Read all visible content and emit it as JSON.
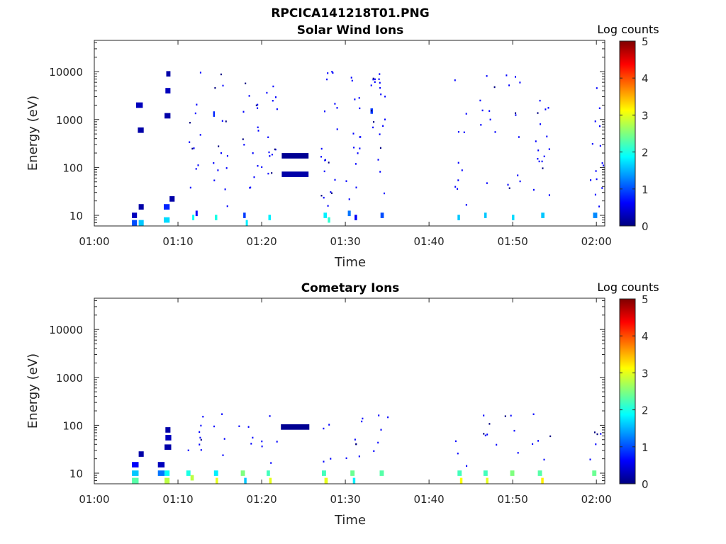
{
  "figure": {
    "title": "RPCICA141218T01.PNG"
  },
  "colormap": {
    "name": "jet",
    "stops": [
      "#00007f",
      "#0000ff",
      "#007fff",
      "#00ffff",
      "#7fff7f",
      "#ffff00",
      "#ff7f00",
      "#ff0000",
      "#7f0000"
    ]
  },
  "chart_data": [
    {
      "type": "heatmap",
      "title": "Solar Wind Ions",
      "xlabel": "Time",
      "ylabel": "Energy (eV)",
      "y_scale": "log",
      "xlim": [
        "01:00",
        "02:01"
      ],
      "ylim": [
        6,
        45000
      ],
      "x_ticks": [
        "01:00",
        "01:10",
        "01:20",
        "01:30",
        "01:40",
        "01:50",
        "02:00"
      ],
      "y_ticks": [
        "10",
        "100",
        "1000",
        "10000"
      ],
      "colorbar": {
        "label": "Log counts",
        "min": 0,
        "max": 5,
        "ticks": [
          "0",
          "1",
          "2",
          "3",
          "4",
          "5"
        ]
      },
      "values": [
        {
          "t": 4.5,
          "dt": 0.6,
          "e": 10,
          "c": 0.3
        },
        {
          "t": 4.5,
          "dt": 0.6,
          "e": 7,
          "c": 1.0
        },
        {
          "t": 5.3,
          "dt": 0.6,
          "e": 15,
          "c": 0.2
        },
        {
          "t": 5.3,
          "dt": 0.6,
          "e": 7,
          "c": 1.6
        },
        {
          "t": 8.3,
          "dt": 0.7,
          "e": 15,
          "c": 0.8
        },
        {
          "t": 8.3,
          "dt": 0.7,
          "e": 8,
          "c": 1.7
        },
        {
          "t": 9.0,
          "dt": 0.6,
          "e": 22,
          "c": 0.2
        },
        {
          "t": 11.7,
          "dt": 0.25,
          "e": 9,
          "c": 1.9
        },
        {
          "t": 12.1,
          "dt": 0.25,
          "e": 11,
          "c": 0.6
        },
        {
          "t": 14.4,
          "dt": 0.3,
          "e": 9,
          "c": 2.0
        },
        {
          "t": 17.8,
          "dt": 0.3,
          "e": 10,
          "c": 0.9
        },
        {
          "t": 18.1,
          "dt": 0.25,
          "e": 7,
          "c": 1.8
        },
        {
          "t": 20.8,
          "dt": 0.3,
          "e": 9,
          "c": 1.8
        },
        {
          "t": 27.4,
          "dt": 0.4,
          "e": 10,
          "c": 1.8
        },
        {
          "t": 27.9,
          "dt": 0.3,
          "e": 8,
          "c": 2.1
        },
        {
          "t": 30.3,
          "dt": 0.35,
          "e": 11,
          "c": 1.2
        },
        {
          "t": 31.1,
          "dt": 0.3,
          "e": 9,
          "c": 0.6
        },
        {
          "t": 34.2,
          "dt": 0.4,
          "e": 10,
          "c": 1.0
        },
        {
          "t": 43.4,
          "dt": 0.3,
          "e": 9,
          "c": 1.6
        },
        {
          "t": 46.6,
          "dt": 0.3,
          "e": 10,
          "c": 1.6
        },
        {
          "t": 49.9,
          "dt": 0.3,
          "e": 9,
          "c": 1.7
        },
        {
          "t": 53.4,
          "dt": 0.4,
          "e": 10,
          "c": 1.6
        },
        {
          "t": 59.6,
          "dt": 0.5,
          "e": 10,
          "c": 1.3
        },
        {
          "t": 22.4,
          "dt": 3.2,
          "e": 175,
          "c": 0.1
        },
        {
          "t": 22.4,
          "dt": 3.2,
          "e": 72,
          "c": 0.2
        },
        {
          "t": 5.0,
          "dt": 0.8,
          "e": 2000,
          "c": 0.3
        },
        {
          "t": 5.2,
          "dt": 0.7,
          "e": 600,
          "c": 0.2
        },
        {
          "t": 8.4,
          "dt": 0.7,
          "e": 1200,
          "c": 0.2
        },
        {
          "t": 8.5,
          "dt": 0.6,
          "e": 4000,
          "c": 0.3
        },
        {
          "t": 8.6,
          "dt": 0.5,
          "e": 9000,
          "c": 0.2
        },
        {
          "t": 14.2,
          "dt": 0.2,
          "e": 1300,
          "c": 0.8
        },
        {
          "t": 33.0,
          "dt": 0.3,
          "e": 1500,
          "c": 0.9
        }
      ]
    },
    {
      "type": "heatmap",
      "title": "Cometary Ions",
      "xlabel": "Time",
      "ylabel": "Energy (eV)",
      "y_scale": "log",
      "xlim": [
        "01:00",
        "02:01"
      ],
      "ylim": [
        6,
        45000
      ],
      "x_ticks": [
        "01:00",
        "01:10",
        "01:20",
        "01:30",
        "01:40",
        "01:50",
        "02:00"
      ],
      "y_ticks": [
        "10",
        "100",
        "1000",
        "10000"
      ],
      "colorbar": {
        "label": "Log counts",
        "min": 0,
        "max": 5,
        "ticks": [
          "0",
          "1",
          "2",
          "3",
          "4",
          "5"
        ]
      },
      "values": [
        {
          "t": 4.5,
          "dt": 0.8,
          "e": 15,
          "c": 0.6
        },
        {
          "t": 4.5,
          "dt": 0.8,
          "e": 10,
          "c": 1.6
        },
        {
          "t": 4.5,
          "dt": 0.8,
          "e": 7,
          "c": 2.3
        },
        {
          "t": 7.6,
          "dt": 0.8,
          "e": 15,
          "c": 0.3
        },
        {
          "t": 7.6,
          "dt": 0.8,
          "e": 10,
          "c": 1.2
        },
        {
          "t": 8.4,
          "dt": 0.6,
          "e": 10,
          "c": 1.9
        },
        {
          "t": 8.4,
          "dt": 0.6,
          "e": 7,
          "c": 2.8
        },
        {
          "t": 11.0,
          "dt": 0.5,
          "e": 10,
          "c": 2.0
        },
        {
          "t": 11.5,
          "dt": 0.4,
          "e": 8,
          "c": 2.8
        },
        {
          "t": 14.3,
          "dt": 0.5,
          "e": 10,
          "c": 1.8
        },
        {
          "t": 14.5,
          "dt": 0.3,
          "e": 7,
          "c": 3.0
        },
        {
          "t": 17.5,
          "dt": 0.5,
          "e": 10,
          "c": 2.5
        },
        {
          "t": 17.9,
          "dt": 0.3,
          "e": 7,
          "c": 1.6
        },
        {
          "t": 20.6,
          "dt": 0.4,
          "e": 10,
          "c": 2.2
        },
        {
          "t": 20.9,
          "dt": 0.3,
          "e": 7,
          "c": 3.0
        },
        {
          "t": 27.2,
          "dt": 0.5,
          "e": 10,
          "c": 2.2
        },
        {
          "t": 27.5,
          "dt": 0.4,
          "e": 7,
          "c": 3.0
        },
        {
          "t": 30.6,
          "dt": 0.5,
          "e": 10,
          "c": 2.4
        },
        {
          "t": 30.9,
          "dt": 0.3,
          "e": 7,
          "c": 1.8
        },
        {
          "t": 34.1,
          "dt": 0.5,
          "e": 10,
          "c": 2.3
        },
        {
          "t": 43.4,
          "dt": 0.5,
          "e": 10,
          "c": 2.2
        },
        {
          "t": 43.7,
          "dt": 0.3,
          "e": 7,
          "c": 3.1
        },
        {
          "t": 46.5,
          "dt": 0.5,
          "e": 10,
          "c": 2.2
        },
        {
          "t": 46.8,
          "dt": 0.3,
          "e": 7,
          "c": 3.0
        },
        {
          "t": 49.7,
          "dt": 0.5,
          "e": 10,
          "c": 2.5
        },
        {
          "t": 53.0,
          "dt": 0.5,
          "e": 10,
          "c": 2.3
        },
        {
          "t": 53.4,
          "dt": 0.3,
          "e": 7,
          "c": 3.2
        },
        {
          "t": 59.5,
          "dt": 0.5,
          "e": 10,
          "c": 2.4
        },
        {
          "t": 5.3,
          "dt": 0.6,
          "e": 25,
          "c": 0.2
        },
        {
          "t": 8.4,
          "dt": 0.8,
          "e": 35,
          "c": 0.2
        },
        {
          "t": 8.5,
          "dt": 0.7,
          "e": 55,
          "c": 0.3
        },
        {
          "t": 8.5,
          "dt": 0.6,
          "e": 80,
          "c": 0.2
        },
        {
          "t": 22.3,
          "dt": 3.4,
          "e": 92,
          "c": 0.1
        }
      ]
    }
  ]
}
